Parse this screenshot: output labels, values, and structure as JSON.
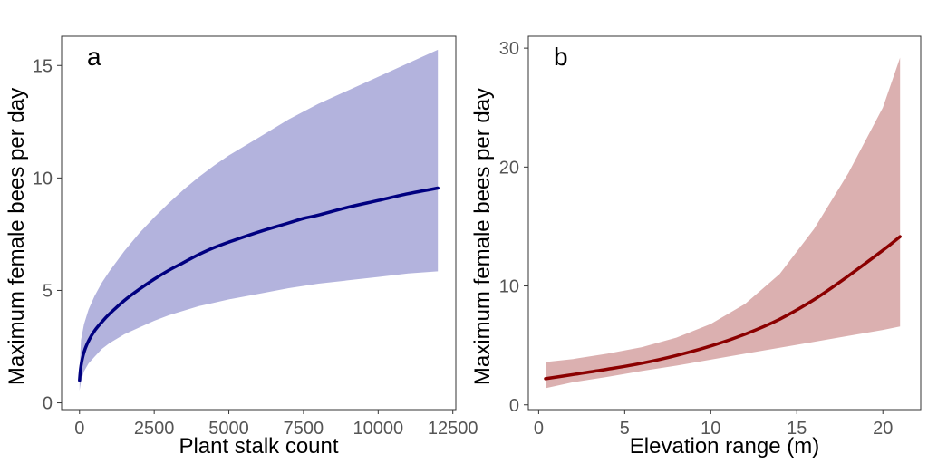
{
  "chart_data": [
    {
      "type": "line",
      "panel_label": "a",
      "xlabel": "Plant stalk count",
      "ylabel": "Maximum female bees per day",
      "xlim": [
        -600,
        12600
      ],
      "ylim": [
        -0.3,
        16.3
      ],
      "xticks": [
        0,
        2500,
        5000,
        7500,
        10000,
        12500
      ],
      "yticks": [
        0,
        5,
        10,
        15
      ],
      "grid": false,
      "colors": {
        "line": "#000080",
        "band": "#b3b3dd"
      },
      "x": [
        0,
        50,
        150,
        300,
        500,
        750,
        1000,
        1500,
        2000,
        2500,
        3000,
        3500,
        4000,
        4500,
        5000,
        6000,
        7000,
        7500,
        8000,
        9000,
        10000,
        11000,
        12000
      ],
      "series": [
        {
          "values": [
            1.0,
            1.65,
            2.25,
            2.75,
            3.2,
            3.6,
            3.95,
            4.55,
            5.05,
            5.5,
            5.9,
            6.25,
            6.6,
            6.9,
            7.15,
            7.6,
            8.0,
            8.2,
            8.35,
            8.7,
            9.0,
            9.3,
            9.55
          ],
          "lower": [
            0.55,
            0.95,
            1.4,
            1.75,
            2.05,
            2.4,
            2.65,
            3.05,
            3.35,
            3.65,
            3.9,
            4.1,
            4.3,
            4.45,
            4.6,
            4.85,
            5.1,
            5.2,
            5.3,
            5.45,
            5.6,
            5.75,
            5.85
          ],
          "upper": [
            1.5,
            2.8,
            3.5,
            4.15,
            4.75,
            5.35,
            5.85,
            6.75,
            7.55,
            8.25,
            8.9,
            9.5,
            10.05,
            10.55,
            11.0,
            11.8,
            12.6,
            12.95,
            13.3,
            13.9,
            14.5,
            15.1,
            15.7
          ]
        }
      ]
    },
    {
      "type": "line",
      "panel_label": "b",
      "xlabel": "Elevation range (m)",
      "ylabel": "Maximum female bees per day",
      "xlim": [
        -0.6,
        22.2
      ],
      "ylim": [
        -0.4,
        31
      ],
      "xticks": [
        0,
        5,
        10,
        15,
        20
      ],
      "yticks": [
        0,
        10,
        20,
        30
      ],
      "grid": false,
      "colors": {
        "line": "#8b0000",
        "band": "#dbb0b0"
      },
      "x": [
        0.4,
        2,
        4,
        6,
        8,
        10,
        12,
        14,
        16,
        18,
        20,
        21
      ],
      "series": [
        {
          "values": [
            2.2,
            2.55,
            3.0,
            3.5,
            4.15,
            4.95,
            5.95,
            7.2,
            8.85,
            10.85,
            13.0,
            14.15
          ],
          "lower": [
            1.4,
            1.9,
            2.35,
            2.85,
            3.3,
            3.8,
            4.3,
            4.8,
            5.3,
            5.8,
            6.3,
            6.6
          ],
          "upper": [
            3.6,
            3.85,
            4.3,
            4.85,
            5.65,
            6.8,
            8.5,
            11.0,
            14.8,
            19.5,
            25.0,
            29.2
          ]
        }
      ]
    }
  ]
}
